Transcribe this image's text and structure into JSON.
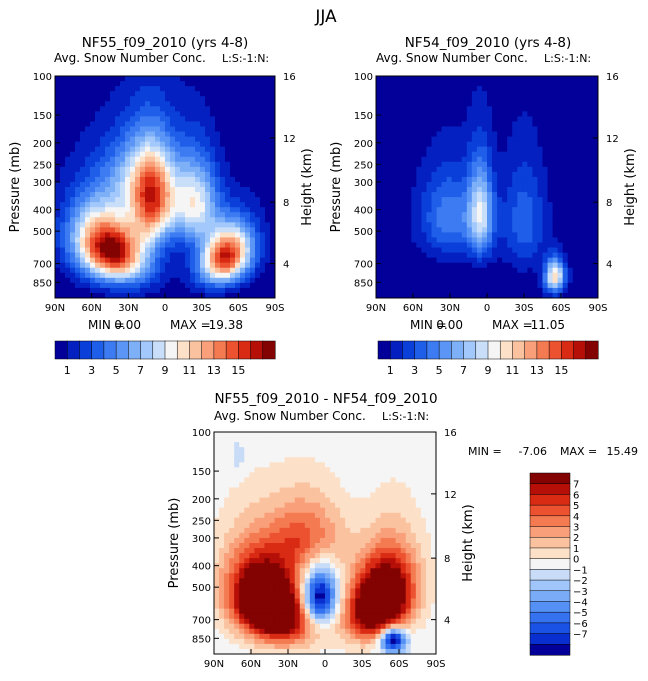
{
  "figure_title": "JJA",
  "colors": {
    "scale_a": [
      "#03009a",
      "#0520c0",
      "#0a3fd9",
      "#1f5ee8",
      "#3c7bf2",
      "#5b96f6",
      "#7eb0f8",
      "#a3c8fb",
      "#c9def8",
      "#f4f5f4",
      "#fde0c8",
      "#fbc2a0",
      "#f9a07a",
      "#f47a52",
      "#ec5230",
      "#d92b14",
      "#b50f08",
      "#830302"
    ],
    "scale_b": [
      "#03009a",
      "#0a2fd0",
      "#1a52e6",
      "#3572f0",
      "#5590f4",
      "#7aabf7",
      "#a0c5fa",
      "#c8dcf8",
      "#f4f5f4",
      "#fde0c8",
      "#fbc2a0",
      "#f9a07a",
      "#f47a52",
      "#ec5230",
      "#d92b14",
      "#b50f08",
      "#830302"
    ],
    "background_b": "#fde6d3"
  },
  "chart_data": [
    {
      "type": "heatmap",
      "title": "NF55_f09_2010 (yrs 4-8)",
      "subtitle": "Avg. Snow Number Conc.",
      "units": "L:S:-1:N:",
      "xlabel": "",
      "ylabel": "Pressure (mb)",
      "y2label": "Height (km)",
      "x_ticks": [
        "90N",
        "60N",
        "30N",
        "0",
        "30S",
        "60S",
        "90S"
      ],
      "x_tick_lat": [
        90,
        60,
        30,
        0,
        -30,
        -60,
        -90
      ],
      "y_ticks": [
        "100",
        "150",
        "200",
        "250",
        "300",
        "400",
        "500",
        "700",
        "850"
      ],
      "y_tick_p": [
        100,
        150,
        200,
        250,
        300,
        400,
        500,
        700,
        850
      ],
      "y2_ticks": [
        "16",
        "12",
        "8",
        "4"
      ],
      "y2_tick_p": [
        100,
        190,
        370,
        700
      ],
      "p_range": [
        100,
        1000
      ],
      "min_label": "MIN =",
      "min": "0.00",
      "max_label": "MAX =",
      "max": "19.38",
      "field": {
        "background": 0.3,
        "features": [
          {
            "lat": 45,
            "p": 600,
            "amp": 18,
            "slat": 28,
            "sp": 220,
            "tilt": -10
          },
          {
            "lat": 10,
            "p": 380,
            "amp": 12,
            "slat": 18,
            "sp": 170,
            "tilt": 0
          },
          {
            "lat": 20,
            "p": 280,
            "amp": 6,
            "slat": 30,
            "sp": 120,
            "tilt": 0
          },
          {
            "lat": -50,
            "p": 650,
            "amp": 16,
            "slat": 20,
            "sp": 190,
            "tilt": 8
          },
          {
            "lat": -25,
            "p": 380,
            "amp": 9,
            "slat": 18,
            "sp": 160,
            "tilt": 0
          }
        ]
      }
    },
    {
      "type": "heatmap",
      "title": "NF54_f09_2010 (yrs 4-8)",
      "subtitle": "Avg. Snow Number Conc.",
      "units": "L:S:-1:N:",
      "xlabel": "",
      "ylabel": "Pressure (mb)",
      "y2label": "Height (km)",
      "x_ticks": [
        "90N",
        "60N",
        "30N",
        "0",
        "30S",
        "60S",
        "90S"
      ],
      "x_tick_lat": [
        90,
        60,
        30,
        0,
        -30,
        -60,
        -90
      ],
      "y_ticks": [
        "100",
        "150",
        "200",
        "250",
        "300",
        "400",
        "500",
        "700",
        "850"
      ],
      "y_tick_p": [
        100,
        150,
        200,
        250,
        300,
        400,
        500,
        700,
        850
      ],
      "y2_ticks": [
        "16",
        "12",
        "8",
        "4"
      ],
      "y2_tick_p": [
        100,
        190,
        370,
        700
      ],
      "p_range": [
        100,
        1000
      ],
      "min_label": "MIN =",
      "min": "0.00",
      "max_label": "MAX =",
      "max": "11.05",
      "field": {
        "background": 0.2,
        "features": [
          {
            "lat": 5,
            "p": 420,
            "amp": 7.5,
            "slat": 10,
            "sp": 200,
            "tilt": 0
          },
          {
            "lat": 30,
            "p": 430,
            "amp": 4.5,
            "slat": 25,
            "sp": 200,
            "tilt": 0
          },
          {
            "lat": -30,
            "p": 450,
            "amp": 3.5,
            "slat": 18,
            "sp": 250,
            "tilt": 0
          },
          {
            "lat": -55,
            "p": 800,
            "amp": 10.5,
            "slat": 8,
            "sp": 140,
            "tilt": 0
          }
        ]
      }
    },
    {
      "type": "heatmap",
      "title": "NF55_f09_2010 - NF54_f09_2010",
      "subtitle": "Avg. Snow Number Conc.",
      "units": "L:S:-1:N:",
      "xlabel": "",
      "ylabel": "Pressure (mb)",
      "y2label": "Height (km)",
      "x_ticks": [
        "90N",
        "60N",
        "30N",
        "0",
        "30S",
        "60S",
        "90S"
      ],
      "x_tick_lat": [
        90,
        60,
        30,
        0,
        -30,
        -60,
        -90
      ],
      "y_ticks": [
        "100",
        "150",
        "200",
        "250",
        "300",
        "400",
        "500",
        "700",
        "850"
      ],
      "y_tick_p": [
        100,
        150,
        200,
        250,
        300,
        400,
        500,
        700,
        850
      ],
      "y2_ticks": [
        "16",
        "12",
        "8",
        "4"
      ],
      "y2_tick_p": [
        100,
        190,
        370,
        700
      ],
      "p_range": [
        100,
        1000
      ],
      "min_label": "MIN =",
      "min": "-7.06",
      "max_label": "MAX =",
      "max": "15.49",
      "field": {
        "background": 0.3,
        "features": [
          {
            "lat": 45,
            "p": 600,
            "amp": 15,
            "slat": 30,
            "sp": 250,
            "tilt": -10
          },
          {
            "lat": 15,
            "p": 300,
            "amp": 5,
            "slat": 30,
            "sp": 120,
            "tilt": 0
          },
          {
            "lat": -45,
            "p": 580,
            "amp": 14,
            "slat": 25,
            "sp": 240,
            "tilt": 8
          },
          {
            "lat": 5,
            "p": 560,
            "amp": -10,
            "slat": 14,
            "sp": 160,
            "tilt": 0
          },
          {
            "lat": -55,
            "p": 860,
            "amp": -10,
            "slat": 10,
            "sp": 110,
            "tilt": 0
          },
          {
            "lat": 70,
            "p": 130,
            "amp": -1.3,
            "slat": 4,
            "sp": 25,
            "tilt": 0
          }
        ]
      }
    }
  ],
  "colorbars": [
    {
      "labels": [
        "1",
        "3",
        "5",
        "7",
        "9",
        "11",
        "13",
        "15"
      ],
      "orientation": "horizontal"
    },
    {
      "labels": [
        "1",
        "3",
        "5",
        "7",
        "9",
        "11",
        "13",
        "15"
      ],
      "orientation": "horizontal"
    },
    {
      "labels": [
        "7",
        "6",
        "5",
        "4",
        "3",
        "2",
        "1",
        "0",
        "−1",
        "−2",
        "−3",
        "−4",
        "−5",
        "−6",
        "−7"
      ],
      "orientation": "vertical"
    }
  ]
}
